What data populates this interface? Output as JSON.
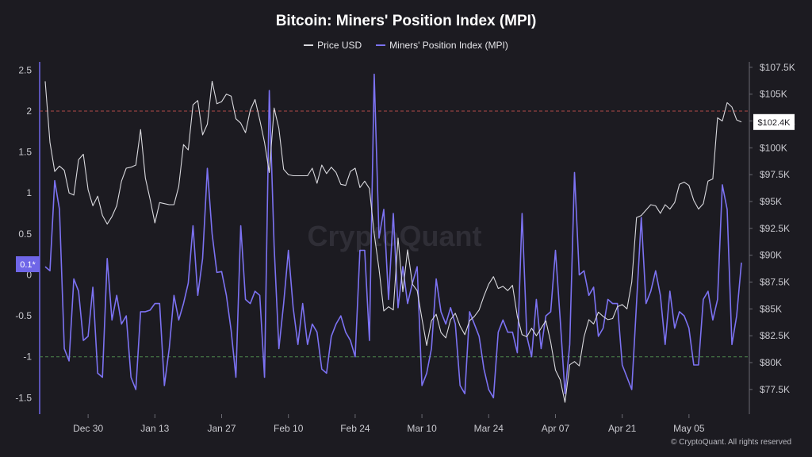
{
  "title": "Bitcoin: Miners' Position Index (MPI)",
  "credit": "© CryptoQuant. All rights reserved",
  "watermark": "CryptoQuant",
  "colors": {
    "background": "#1c1b21",
    "price": "#d9d9de",
    "mpi": "#7c72f2",
    "red_line": "#b04848",
    "green_line": "#4e8a4e",
    "tag_blue": "#6f66e8"
  },
  "chart_data": {
    "type": "line",
    "title": "Bitcoin: Miners' Position Index (MPI)",
    "x_start": "2024-12-21",
    "x_step_days": 1,
    "x_ticks": [
      "Dec 30",
      "Jan 13",
      "Jan 27",
      "Feb 10",
      "Feb 24",
      "Mar 10",
      "Mar 24",
      "Apr 07",
      "Apr 21",
      "May 05"
    ],
    "y_left_ticks": [
      "2.5",
      "2",
      "1.5",
      "1",
      "0.5",
      "0",
      "-0.5",
      "-1",
      "-1.5"
    ],
    "y_right_ticks": [
      "$107.5K",
      "$105K",
      "$102.5K",
      "$100K",
      "$97.5K",
      "$95K",
      "$92.5K",
      "$90K",
      "$87.5K",
      "$85K",
      "$82.5K",
      "$80K",
      "$77.5K"
    ],
    "y_left_range": [
      -1.7,
      2.6
    ],
    "y_right_range": [
      75200,
      108000
    ],
    "ref_lines": [
      {
        "value": 2,
        "axis": "left",
        "color": "#b04848"
      },
      {
        "value": -1,
        "axis": "left",
        "color": "#4e8a4e"
      }
    ],
    "current_labels": {
      "left": "0.1*",
      "right": "$102.4K"
    },
    "series": [
      {
        "name": "Price USD",
        "axis": "right",
        "values": [
          106200,
          100500,
          97800,
          98300,
          97900,
          95800,
          95600,
          98900,
          99400,
          96100,
          94600,
          95500,
          93700,
          92900,
          93600,
          94600,
          96900,
          98100,
          98200,
          98400,
          101700,
          97200,
          95200,
          93000,
          94900,
          94800,
          94700,
          94700,
          96400,
          100300,
          99800,
          104000,
          104400,
          101200,
          102200,
          106200,
          104100,
          104300,
          105000,
          104800,
          102700,
          102300,
          101400,
          103500,
          104500,
          102600,
          100500,
          97700,
          103700,
          101800,
          98000,
          97500,
          97400,
          97400,
          97400,
          97400,
          98100,
          96700,
          98400,
          97600,
          98200,
          97700,
          96600,
          96500,
          97800,
          98100,
          96300,
          96900,
          96200,
          92000,
          88700,
          84800,
          85200,
          84900,
          91600,
          86600,
          90500,
          87300,
          86700,
          84100,
          81600,
          83900,
          84500,
          82800,
          82300,
          84000,
          84600,
          83400,
          82600,
          83900,
          84300,
          84900,
          86200,
          87300,
          88000,
          86900,
          87100,
          86700,
          87200,
          84300,
          82600,
          82400,
          83200,
          82500,
          83200,
          83900,
          81900,
          79300,
          78400,
          76300,
          79800,
          80100,
          79700,
          82400,
          84000,
          83600,
          84700,
          84300,
          84000,
          84100,
          85200,
          85400,
          85000,
          87500,
          93500,
          93700,
          94200,
          94700,
          94600,
          93900,
          94700,
          94300,
          94900,
          96600,
          96800,
          96500,
          95100,
          94300,
          94800,
          96900,
          97100,
          102800,
          102500,
          104200,
          103800,
          102600,
          102400
        ]
      },
      {
        "name": "Miners' Position Index (MPI)",
        "axis": "left",
        "values": [
          0.1,
          0.05,
          1.15,
          0.8,
          -0.9,
          -1.05,
          -0.05,
          -0.2,
          -0.8,
          -0.75,
          -0.15,
          -1.2,
          -1.25,
          0.2,
          -0.55,
          -0.25,
          -0.6,
          -0.5,
          -1.25,
          -1.4,
          -0.45,
          -0.45,
          -0.43,
          -0.35,
          -0.35,
          -1.35,
          -0.9,
          -0.25,
          -0.55,
          -0.35,
          -0.1,
          0.6,
          -0.25,
          0.2,
          1.3,
          0.5,
          0.03,
          0.04,
          -0.25,
          -0.68,
          -1.25,
          0.6,
          -0.3,
          -0.35,
          -0.2,
          -0.25,
          -1.25,
          2.25,
          0.35,
          -0.9,
          -0.35,
          0.3,
          -0.4,
          -0.85,
          -0.35,
          -0.85,
          -0.6,
          -0.7,
          -1.15,
          -1.2,
          -0.75,
          -0.6,
          -0.5,
          -0.7,
          -0.8,
          -1.0,
          0.3,
          0.3,
          -0.8,
          2.45,
          0.45,
          0.8,
          -0.3,
          0.75,
          -0.4,
          0.1,
          -0.35,
          -0.1,
          0.1,
          -1.35,
          -1.2,
          -0.9,
          -0.05,
          -0.45,
          -0.6,
          -0.4,
          -0.6,
          -1.35,
          -1.45,
          -0.45,
          -0.6,
          -0.75,
          -1.15,
          -1.4,
          -1.5,
          -0.7,
          -0.55,
          -0.7,
          -0.7,
          -0.95,
          0.75,
          -0.75,
          -1.0,
          -0.3,
          -0.9,
          -0.5,
          -0.45,
          0.3,
          -0.55,
          -1.45,
          -0.85,
          1.25,
          0.0,
          0.05,
          -0.25,
          -0.15,
          -0.75,
          -0.65,
          -0.3,
          -0.35,
          -0.35,
          -1.1,
          -1.25,
          -1.4,
          -0.35,
          0.7,
          -0.35,
          -0.2,
          0.05,
          -0.25,
          -0.85,
          -0.2,
          -0.65,
          -0.45,
          -0.5,
          -0.65,
          -1.1,
          -1.1,
          -0.3,
          -0.2,
          -0.55,
          -0.3,
          1.1,
          0.8,
          -0.85,
          -0.5,
          0.15
        ]
      }
    ]
  }
}
